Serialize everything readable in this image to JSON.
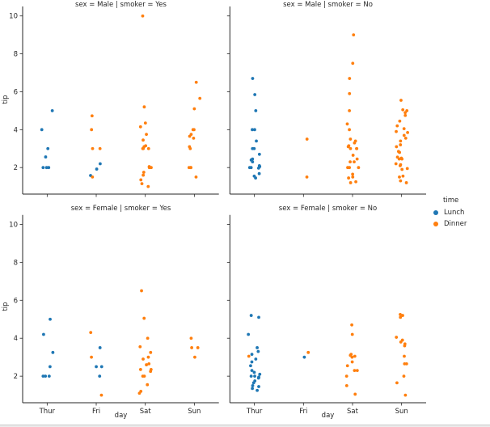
{
  "legend": {
    "title": "time",
    "items": [
      {
        "label": "Lunch",
        "color": "#1f77b4"
      },
      {
        "label": "Dinner",
        "color": "#ff7f0e"
      }
    ]
  },
  "chart_data": {
    "type": "scatter",
    "chart_kind": "faceted stripplot (seaborn catplot of tips dataset)",
    "xlabel": "day",
    "ylabel": "tip",
    "categories": [
      "Thur",
      "Fri",
      "Sat",
      "Sun"
    ],
    "yticks": [
      2,
      4,
      6,
      8,
      10
    ],
    "ylim": [
      0.6,
      10.5
    ],
    "grid": false,
    "legend_position": "right-center",
    "hue": {
      "title": "time",
      "levels": [
        "Lunch",
        "Dinner"
      ],
      "colors": {
        "Lunch": "#1f77b4",
        "Dinner": "#ff7f0e"
      }
    },
    "facets": [
      {
        "title": "sex = Male | smoker = Yes",
        "row": 0,
        "col": 0,
        "points": {
          "Thur": {
            "Lunch": [
              5.0,
              4.0,
              3.0,
              2.56,
              2.0,
              2.0,
              2.0
            ],
            "Dinner": []
          },
          "Fri": {
            "Lunch": [
              2.2,
              1.92,
              1.58
            ],
            "Dinner": [
              4.73,
              4.0,
              3.0,
              3.0,
              1.5
            ]
          },
          "Sat": {
            "Lunch": [],
            "Dinner": [
              10.0,
              5.2,
              4.35,
              4.15,
              3.75,
              3.45,
              3.15,
              3.1,
              3.0,
              3.0,
              3.0,
              2.05,
              2.0,
              2.0,
              1.75,
              1.6,
              1.35,
              1.15,
              1.0
            ]
          },
          "Sun": {
            "Lunch": [],
            "Dinner": [
              6.5,
              5.65,
              5.1,
              4.0,
              4.0,
              3.75,
              3.65,
              3.55,
              3.1,
              3.0,
              2.0,
              2.0,
              2.0,
              1.5
            ]
          }
        }
      },
      {
        "title": "sex = Male | smoker = No",
        "row": 0,
        "col": 1,
        "points": {
          "Thur": {
            "Lunch": [
              6.7,
              5.85,
              5.0,
              4.0,
              4.0,
              3.4,
              3.0,
              3.0,
              2.7,
              2.45,
              2.4,
              2.3,
              2.1,
              2.05,
              2.0,
              2.0,
              1.97,
              1.68,
              1.55,
              1.45
            ],
            "Dinner": []
          },
          "Fri": {
            "Lunch": [],
            "Dinner": [
              3.5,
              1.5
            ]
          },
          "Sat": {
            "Lunch": [],
            "Dinner": [
              9.0,
              7.5,
              6.7,
              5.9,
              5.0,
              4.3,
              4.0,
              3.5,
              3.4,
              3.3,
              3.15,
              3.1,
              3.0,
              3.0,
              3.0,
              2.65,
              2.45,
              2.3,
              2.3,
              2.0,
              2.0,
              2.0,
              1.65,
              1.5,
              1.45,
              1.25,
              1.2
            ]
          },
          "Sun": {
            "Lunch": [],
            "Dinner": [
              5.55,
              5.05,
              5.0,
              4.9,
              4.75,
              4.45,
              4.2,
              4.05,
              3.9,
              3.85,
              3.7,
              3.55,
              3.4,
              3.2,
              3.1,
              2.85,
              2.8,
              2.55,
              2.5,
              2.45,
              2.45,
              2.2,
              2.15,
              2.1,
              1.95,
              1.9,
              1.55,
              1.5,
              1.3,
              1.2
            ]
          }
        }
      },
      {
        "title": "sex = Female | smoker = Yes",
        "row": 1,
        "col": 0,
        "points": {
          "Thur": {
            "Lunch": [
              5.0,
              4.2,
              3.25,
              2.5,
              2.0,
              2.0,
              2.0
            ],
            "Dinner": []
          },
          "Fri": {
            "Lunch": [
              3.5,
              2.5,
              2.5,
              2.0
            ],
            "Dinner": [
              4.3,
              3.0,
              1.0
            ]
          },
          "Sat": {
            "Lunch": [],
            "Dinner": [
              6.5,
              5.05,
              4.0,
              3.55,
              3.25,
              3.0,
              2.9,
              2.65,
              2.6,
              2.35,
              2.35,
              2.25,
              2.0,
              2.0,
              1.55,
              1.2,
              1.1
            ]
          },
          "Sun": {
            "Lunch": [],
            "Dinner": [
              4.0,
              3.5,
              3.5,
              3.0
            ]
          }
        }
      },
      {
        "title": "sex = Female | smoker = No",
        "row": 1,
        "col": 1,
        "points": {
          "Thur": {
            "Lunch": [
              5.2,
              5.1,
              4.2,
              3.5,
              3.3,
              3.15,
              2.9,
              2.75,
              2.55,
              2.3,
              2.2,
              2.1,
              2.0,
              2.0,
              1.95,
              1.9,
              1.75,
              1.65,
              1.5,
              1.45,
              1.35,
              1.25
            ],
            "Dinner": [
              3.05
            ]
          },
          "Fri": {
            "Lunch": [
              3.0
            ],
            "Dinner": [
              3.25
            ]
          },
          "Sat": {
            "Lunch": [],
            "Dinner": [
              4.7,
              4.2,
              3.15,
              3.1,
              3.05,
              3.0,
              2.75,
              2.55,
              2.3,
              2.3,
              2.0,
              1.5,
              1.05
            ]
          },
          "Sun": {
            "Lunch": [],
            "Dinner": [
              5.25,
              5.2,
              5.1,
              4.05,
              3.9,
              3.8,
              3.7,
              3.6,
              3.05,
              2.65,
              2.65,
              2.0,
              1.65,
              1.0
            ]
          }
        }
      }
    ]
  }
}
